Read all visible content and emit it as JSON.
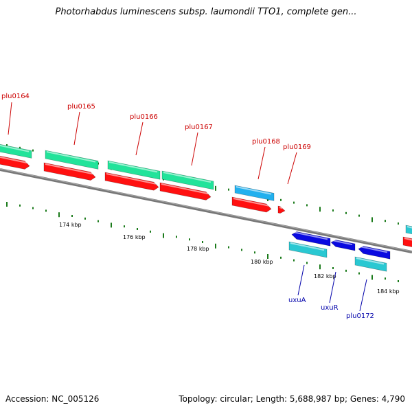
{
  "title": "Photorhabdus luminescens subsp. laumondii TTO1, complete gen...",
  "accession_label": "Accession: NC_005126",
  "summary_label": "Topology: circular; Length: 5,688,987 bp; Genes: 4,790",
  "colors": {
    "backbone": "#777777",
    "tick": "#1a7a1a",
    "label_forward": "#cc0000",
    "label_reverse": "#0000aa",
    "feature_green": "#22e39a",
    "feature_red": "#ff1010",
    "feature_cyan": "#2ac8d2",
    "feature_blue": "#0a0ae0",
    "feature_skyblue": "#22b0ee"
  },
  "scale_labels": [
    "174 kbp",
    "176 kbp",
    "178 kbp",
    "180 kbp",
    "182 kbp",
    "184 kbp"
  ],
  "genes_forward": [
    "plu0164",
    "plu0165",
    "plu0166",
    "plu0167",
    "plu0168",
    "plu0169"
  ],
  "genes_reverse": [
    "uxuA",
    "uxuR",
    "plu0172"
  ]
}
